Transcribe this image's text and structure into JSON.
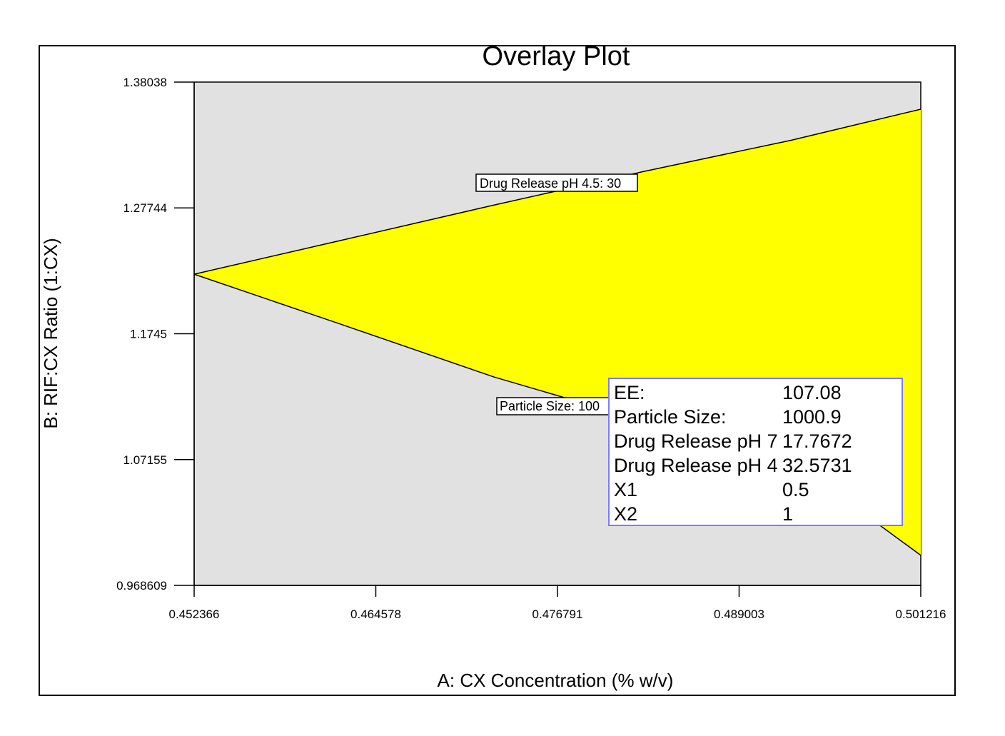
{
  "chart_data": {
    "type": "area",
    "title": "Overlay Plot",
    "xlabel": "A: CX Concentration (% w/v)",
    "ylabel": "B: RIF:CX Ratio (1:CX)",
    "xlim": [
      0.452366,
      0.501216
    ],
    "ylim": [
      0.968609,
      1.38038
    ],
    "x_ticks": [
      "0.452366",
      "0.464578",
      "0.476791",
      "0.489003",
      "0.501216"
    ],
    "y_ticks": [
      "1.38038",
      "1.27744",
      "1.1745",
      "1.07155",
      "0.968609"
    ],
    "background_color": "#e1e1e1",
    "region_color": "#ffff00",
    "region": {
      "name": "feasible region",
      "upper_boundary": {
        "label": "Drug Release pH 4.5: 30",
        "x": [
          0.452366,
          0.462,
          0.4725,
          0.4825,
          0.4925,
          0.501216
        ],
        "y": [
          1.2232,
          1.2502,
          1.2797,
          1.307,
          1.3328,
          1.3582
        ]
      },
      "lower_boundary": {
        "label": "Particle Size: 100",
        "x": [
          0.452366,
          0.462,
          0.4725,
          0.4795,
          0.4875,
          0.4955,
          0.501216
        ],
        "y": [
          1.2232,
          1.1832,
          1.1392,
          1.1142,
          1.0832,
          1.0442,
          0.9932
        ]
      }
    },
    "grid": false,
    "legend": "none"
  },
  "info_box": {
    "rows": [
      {
        "key": "EE:",
        "value": "107.08"
      },
      {
        "key": "Particle Size:",
        "value": "1000.9"
      },
      {
        "key": "Drug Release pH 7",
        "value": "17.7672"
      },
      {
        "key": "Drug Release pH 4",
        "value": "32.5731"
      },
      {
        "key": "X1",
        "value": "0.5"
      },
      {
        "key": "X2",
        "value": "1"
      }
    ]
  }
}
